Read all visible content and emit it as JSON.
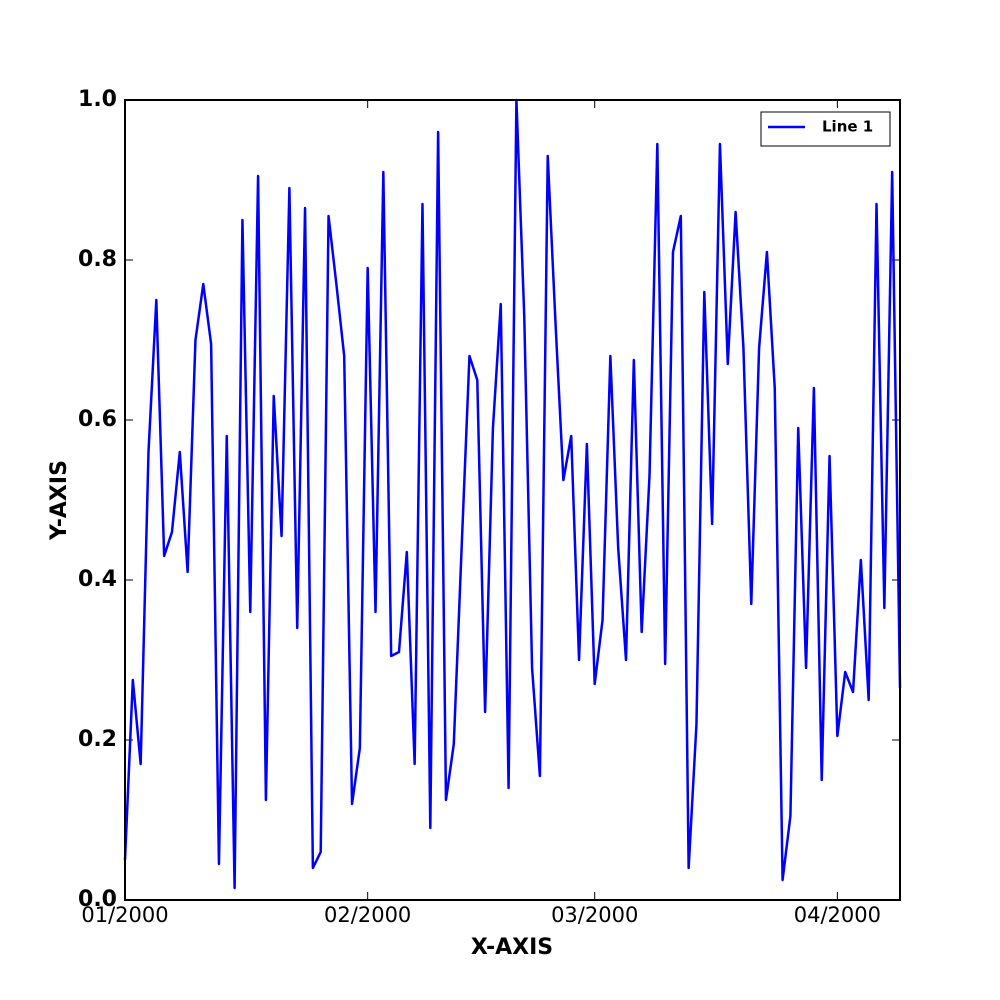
{
  "chart_data": {
    "type": "line",
    "xlabel": "X-AXIS",
    "ylabel": "Y-AXIS",
    "x": [
      0,
      1,
      2,
      3,
      4,
      5,
      6,
      7,
      8,
      9,
      10,
      11,
      12,
      13,
      14,
      15,
      16,
      17,
      18,
      19,
      20,
      21,
      22,
      23,
      24,
      25,
      26,
      27,
      28,
      29,
      30,
      31,
      32,
      33,
      34,
      35,
      36,
      37,
      38,
      39,
      40,
      41,
      42,
      43,
      44,
      45,
      46,
      47,
      48,
      49,
      50,
      51,
      52,
      53,
      54,
      55,
      56,
      57,
      58,
      59,
      60,
      61,
      62,
      63,
      64,
      65,
      66,
      67,
      68,
      69,
      70,
      71,
      72,
      73,
      74,
      75,
      76,
      77,
      78,
      79,
      80,
      81,
      82,
      83,
      84,
      85,
      86,
      87,
      88,
      89,
      90,
      91,
      92,
      93,
      94,
      95,
      96,
      97,
      98,
      99
    ],
    "series": [
      {
        "name": "Line 1",
        "color": "#0000ff",
        "values": [
          0.05,
          0.275,
          0.17,
          0.56,
          0.75,
          0.43,
          0.46,
          0.56,
          0.41,
          0.7,
          0.77,
          0.695,
          0.045,
          0.58,
          0.015,
          0.85,
          0.36,
          0.905,
          0.125,
          0.63,
          0.455,
          0.89,
          0.34,
          0.865,
          0.04,
          0.06,
          0.855,
          0.77,
          0.68,
          0.12,
          0.19,
          0.79,
          0.36,
          0.91,
          0.305,
          0.31,
          0.435,
          0.17,
          0.87,
          0.09,
          0.96,
          0.125,
          0.195,
          0.44,
          0.68,
          0.65,
          0.235,
          0.59,
          0.745,
          0.14,
          1.0,
          0.73,
          0.29,
          0.155,
          0.93,
          0.72,
          0.525,
          0.58,
          0.3,
          0.57,
          0.27,
          0.35,
          0.68,
          0.44,
          0.3,
          0.675,
          0.335,
          0.53,
          0.945,
          0.295,
          0.81,
          0.855,
          0.04,
          0.22,
          0.76,
          0.47,
          0.945,
          0.67,
          0.86,
          0.69,
          0.37,
          0.69,
          0.81,
          0.64,
          0.025,
          0.105,
          0.59,
          0.29,
          0.64,
          0.15,
          0.555,
          0.205,
          0.285,
          0.26,
          0.425,
          0.25,
          0.87,
          0.365,
          0.91,
          0.265
        ]
      }
    ],
    "xlim": [
      0,
      99
    ],
    "xticks": [
      {
        "value": 0,
        "label": "01/2000"
      },
      {
        "value": 31,
        "label": "02/2000"
      },
      {
        "value": 60,
        "label": "03/2000"
      },
      {
        "value": 91,
        "label": "04/2000"
      }
    ],
    "ylim": [
      0,
      1
    ],
    "yticks": [
      {
        "value": 0,
        "label": "0.0"
      },
      0.2,
      0.4,
      0.6,
      0.8,
      {
        "value": 1,
        "label": "1.0"
      }
    ],
    "grid": false,
    "legend": "upper right"
  }
}
